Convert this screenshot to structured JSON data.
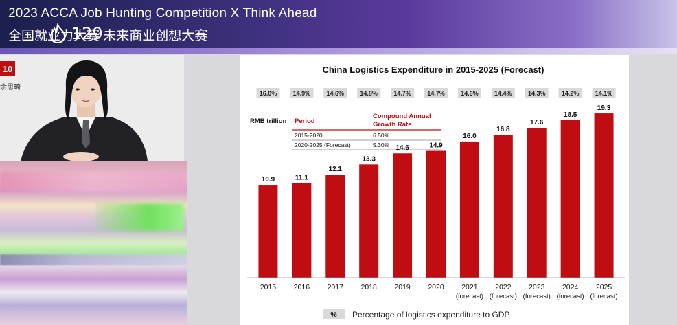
{
  "stream": {
    "title_line1": "2023 ACCA Job Hunting Competition X Think Ahead",
    "title_line2": "全国就业力大赛 未来商业创想大赛",
    "view_count": "129",
    "icon": "fire-icon"
  },
  "speaker": {
    "badge": "10",
    "name": "余思琦"
  },
  "colors": {
    "bar": "#c00d12",
    "header_red": "#c00d12",
    "pct_badge_bg": "#d9d9d9"
  },
  "chart_data": {
    "type": "bar",
    "title": "China Logistics Expenditure in 2015-2025 (Forecast)",
    "unit_label": "RMB trillion",
    "categories": [
      "2015",
      "2016",
      "2017",
      "2018",
      "2019",
      "2020",
      "2021",
      "2022",
      "2023",
      "2024",
      "2025"
    ],
    "category_sublabels": [
      "",
      "",
      "",
      "",
      "",
      "",
      "(forecast)",
      "(forecast)",
      "(forecast)",
      "(forecast)",
      "(forecast)"
    ],
    "values": [
      10.9,
      11.1,
      12.1,
      13.3,
      14.6,
      14.9,
      16.0,
      16.8,
      17.6,
      18.5,
      19.3
    ],
    "value_labels": [
      "10.9",
      "11.1",
      "12.1",
      "13.3",
      "14.6",
      "14.9",
      "16.0",
      "16.8",
      "17.6",
      "18.5",
      "19.3"
    ],
    "gdp_percentages": [
      "16.0%",
      "14.9%",
      "14.6%",
      "14.8%",
      "14.7%",
      "14.7%",
      "14.6%",
      "14.4%",
      "14.3%",
      "14.2%",
      "14.1%"
    ],
    "ylim": [
      0,
      21
    ],
    "growth_table": {
      "header_period": "Period",
      "header_rate_line1": "Compound Annual",
      "header_rate_line2": "Growth Rate",
      "rows": [
        {
          "period": "2015-2020",
          "rate": "6.50%"
        },
        {
          "period": "2020-2025 (Forecast)",
          "rate": "5.30%"
        }
      ]
    },
    "legend": {
      "symbol": "%",
      "text": "Percentage of logistics expenditure to GDP"
    }
  }
}
